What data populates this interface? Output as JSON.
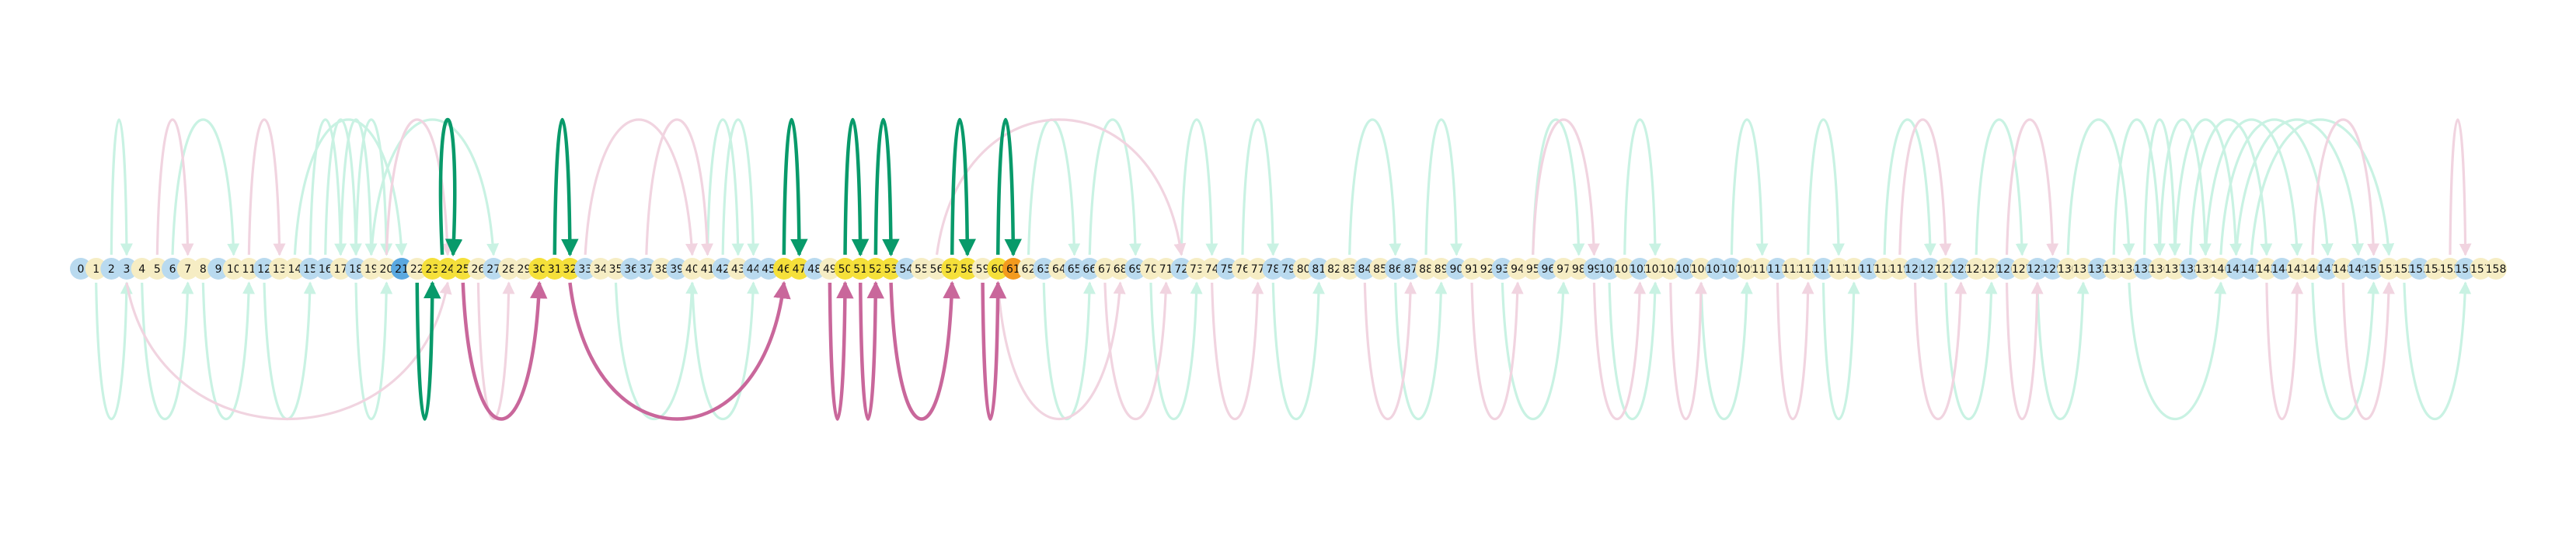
{
  "diagram": {
    "type": "arc-diagram",
    "node_labels": [
      "0",
      "1",
      "2",
      "3",
      "4",
      "5",
      "6",
      "7",
      "8",
      "9",
      "10",
      "11",
      "12",
      "13",
      "14",
      "15",
      "16",
      "17",
      "18",
      "19",
      "20",
      "21",
      "22",
      "23",
      "24",
      "25",
      "26",
      "27",
      "28",
      "29",
      "30",
      "31",
      "32",
      "33",
      "34",
      "35",
      "36",
      "37",
      "38",
      "39",
      "40",
      "41",
      "42",
      "43",
      "44",
      "45",
      "46",
      "47",
      "48",
      "49",
      "50",
      "51",
      "52",
      "53",
      "54",
      "55",
      "56",
      "57",
      "58",
      "59",
      "60",
      "61",
      "62",
      "63",
      "64",
      "65",
      "66",
      "67",
      "68",
      "69",
      "70",
      "71",
      "72",
      "73",
      "74",
      "75",
      "76",
      "77",
      "78",
      "79",
      "80",
      "81",
      "82",
      "83",
      "84",
      "85",
      "86",
      "87",
      "88",
      "89",
      "90",
      "91",
      "92",
      "93",
      "94",
      "95",
      "96",
      "97",
      "98",
      "99",
      "100",
      "101",
      "102",
      "103",
      "104",
      "105",
      "106",
      "107",
      "108",
      "109",
      "110",
      "111",
      "112",
      "113",
      "114",
      "115",
      "116",
      "117",
      "118",
      "119",
      "120",
      "121",
      "122",
      "123",
      "124",
      "125",
      "126",
      "127",
      "128",
      "129",
      "130",
      "131",
      "132",
      "133",
      "134",
      "135",
      "136",
      "137",
      "138",
      "139",
      "140",
      "141",
      "142",
      "143",
      "144",
      "145",
      "146",
      "147",
      "148",
      "149",
      "150",
      "151",
      "152",
      "153",
      "154",
      "155",
      "156",
      "157",
      "158"
    ],
    "highlighted_nodes": [
      21,
      23,
      24,
      25,
      30,
      31,
      32,
      46,
      47,
      50,
      51,
      52,
      53,
      57,
      58,
      60,
      61
    ],
    "selected_node": 21,
    "orange_node": 61,
    "colors": {
      "green_strong": "#089a6a",
      "green_faint": "#c9f2e3",
      "pink_strong": "#c9679b",
      "pink_faint": "#f1d4e0",
      "node_blue": "#b9daef",
      "node_cream": "#f6edc4",
      "node_yellow": "#f5e03a",
      "node_selected": "#5aa8e0",
      "node_orange": "#f39a1e"
    },
    "strong_green_edges": [
      [
        24,
        24,
        "up"
      ],
      [
        31,
        32,
        "up"
      ],
      [
        46,
        47,
        "up"
      ],
      [
        50,
        51,
        "up"
      ],
      [
        52,
        53,
        "up"
      ],
      [
        57,
        58,
        "up"
      ],
      [
        60,
        61,
        "up"
      ],
      [
        22,
        23,
        "down"
      ]
    ],
    "strong_pink_edges": [
      [
        25,
        30,
        "down"
      ],
      [
        32,
        46,
        "down"
      ],
      [
        49,
        50,
        "down"
      ],
      [
        51,
        52,
        "down"
      ],
      [
        53,
        57,
        "down"
      ],
      [
        59,
        60,
        "down"
      ]
    ],
    "faint_green_edges": [
      [
        2,
        3,
        "up"
      ],
      [
        6,
        10,
        "up"
      ],
      [
        15,
        17,
        "up"
      ],
      [
        16,
        18,
        "up"
      ],
      [
        17,
        19,
        "up"
      ],
      [
        18,
        20,
        "up"
      ],
      [
        14,
        21,
        "up"
      ],
      [
        19,
        27,
        "up"
      ],
      [
        41,
        43,
        "up"
      ],
      [
        42,
        44,
        "up"
      ],
      [
        62,
        65,
        "up"
      ],
      [
        66,
        69,
        "up"
      ],
      [
        72,
        74,
        "up"
      ],
      [
        76,
        78,
        "up"
      ],
      [
        83,
        86,
        "up"
      ],
      [
        88,
        90,
        "up"
      ],
      [
        95,
        98,
        "up"
      ],
      [
        101,
        103,
        "up"
      ],
      [
        108,
        110,
        "up"
      ],
      [
        113,
        115,
        "up"
      ],
      [
        118,
        121,
        "up"
      ],
      [
        124,
        127,
        "up"
      ],
      [
        130,
        134,
        "up"
      ],
      [
        133,
        136,
        "up"
      ],
      [
        135,
        137,
        "up"
      ],
      [
        136,
        139,
        "up"
      ],
      [
        137,
        141,
        "up"
      ],
      [
        138,
        143,
        "up"
      ],
      [
        139,
        145,
        "up"
      ],
      [
        140,
        147,
        "up"
      ],
      [
        141,
        149,
        "up"
      ],
      [
        142,
        151,
        "up"
      ],
      [
        1,
        3,
        "down"
      ],
      [
        4,
        7,
        "down"
      ],
      [
        8,
        11,
        "down"
      ],
      [
        12,
        15,
        "down"
      ],
      [
        18,
        20,
        "down"
      ],
      [
        40,
        44,
        "down"
      ],
      [
        63,
        66,
        "down"
      ],
      [
        70,
        73,
        "down"
      ],
      [
        78,
        81,
        "down"
      ],
      [
        86,
        89,
        "down"
      ],
      [
        93,
        97,
        "down"
      ],
      [
        100,
        103,
        "down"
      ],
      [
        106,
        109,
        "down"
      ],
      [
        114,
        116,
        "down"
      ],
      [
        122,
        125,
        "down"
      ],
      [
        128,
        131,
        "down"
      ],
      [
        134,
        140,
        "down"
      ],
      [
        146,
        150,
        "down"
      ],
      [
        152,
        156,
        "down"
      ],
      [
        35,
        40,
        "down"
      ]
    ],
    "faint_pink_edges": [
      [
        5,
        7,
        "up"
      ],
      [
        11,
        13,
        "up"
      ],
      [
        20,
        24,
        "up"
      ],
      [
        33,
        40,
        "up"
      ],
      [
        56,
        72,
        "up"
      ],
      [
        95,
        99,
        "up"
      ],
      [
        119,
        122,
        "up"
      ],
      [
        126,
        129,
        "up"
      ],
      [
        146,
        150,
        "up"
      ],
      [
        155,
        156,
        "up"
      ],
      [
        37,
        41,
        "up"
      ],
      [
        3,
        24,
        "down"
      ],
      [
        26,
        28,
        "down"
      ],
      [
        60,
        68,
        "down"
      ],
      [
        67,
        71,
        "down"
      ],
      [
        74,
        77,
        "down"
      ],
      [
        84,
        87,
        "down"
      ],
      [
        91,
        94,
        "down"
      ],
      [
        99,
        102,
        "down"
      ],
      [
        104,
        106,
        "down"
      ],
      [
        111,
        113,
        "down"
      ],
      [
        120,
        123,
        "down"
      ],
      [
        126,
        128,
        "down"
      ],
      [
        143,
        145,
        "down"
      ],
      [
        148,
        151,
        "down"
      ]
    ]
  }
}
